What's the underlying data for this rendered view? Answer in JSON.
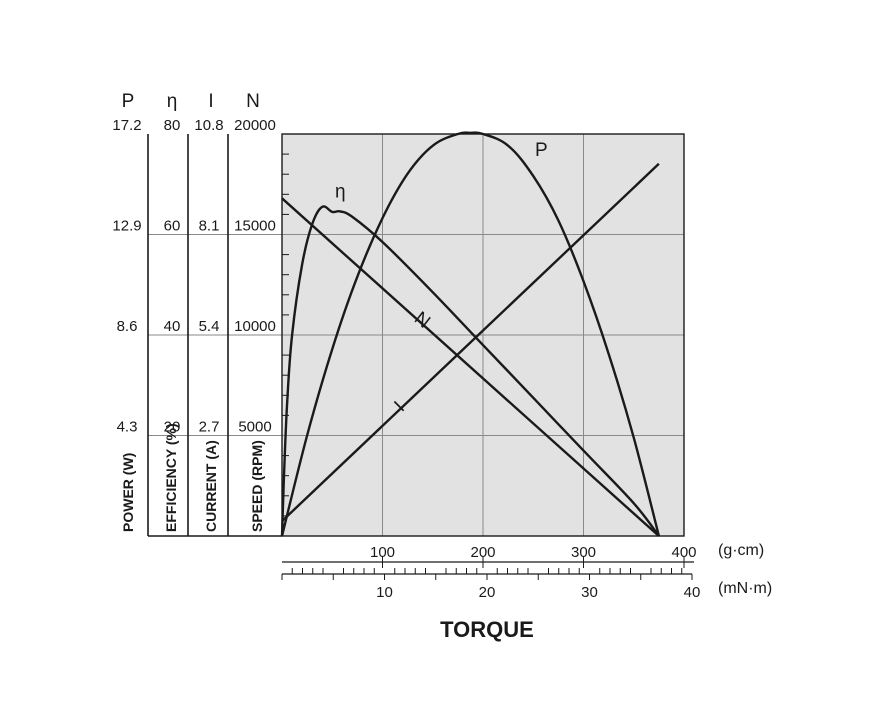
{
  "chart_data": {
    "type": "line",
    "x_axis": {
      "title": "TORQUE",
      "primary": {
        "unit": "(g·cm)",
        "ticks": [
          100,
          200,
          300,
          400
        ],
        "range": [
          0,
          400
        ]
      },
      "secondary": {
        "unit": "(mN·m)",
        "ticks": [
          10,
          20,
          30,
          40
        ],
        "range": [
          0,
          40
        ]
      }
    },
    "y_axes": [
      {
        "key": "P",
        "head": "P",
        "label": "POWER (W)",
        "ticks": [
          "4.3",
          "8.6",
          "12.9",
          "17.2"
        ],
        "range": [
          0,
          17.2
        ]
      },
      {
        "key": "eta",
        "head": "η",
        "label": "EFFICIENCY (%)",
        "ticks": [
          "20",
          "40",
          "60",
          "80"
        ],
        "range": [
          0,
          80
        ]
      },
      {
        "key": "I",
        "head": "I",
        "label": "CURRENT (A)",
        "ticks": [
          "2.7",
          "5.4",
          "8.1",
          "10.8"
        ],
        "range": [
          0,
          10.8
        ]
      },
      {
        "key": "N",
        "head": "N",
        "label": "SPEED (RPM)",
        "ticks": [
          "5000",
          "10000",
          "15000",
          "20000"
        ],
        "range": [
          0,
          20000
        ]
      }
    ],
    "grid": true,
    "series": [
      {
        "name": "N",
        "axis": "N",
        "x": [
          0,
          37.5
        ],
        "y": [
          16800,
          0
        ]
      },
      {
        "name": "I",
        "axis": "I",
        "x": [
          0,
          37.5
        ],
        "y": [
          0.4,
          10.0
        ]
      },
      {
        "name": "P",
        "axis": "P",
        "x": [
          0,
          2.5,
          5,
          7.5,
          10,
          12.5,
          15,
          17.5,
          18.75,
          20,
          22.5,
          25,
          27.5,
          30,
          32.5,
          35,
          37.5
        ],
        "y": [
          0,
          4.3,
          8.0,
          11.1,
          13.6,
          15.5,
          16.7,
          17.2,
          17.25,
          17.2,
          16.7,
          15.4,
          13.5,
          10.9,
          7.8,
          4.2,
          0
        ]
      },
      {
        "name": "η",
        "axis": "eta",
        "x": [
          0,
          0.2,
          0.5,
          1,
          2,
          3,
          4,
          5,
          5.8,
          7,
          10,
          15,
          20,
          25,
          30,
          35,
          37.5
        ],
        "y": [
          0,
          12,
          26,
          40,
          54,
          62,
          65.5,
          64.5,
          64.6,
          63.5,
          58.5,
          48.5,
          38,
          27.5,
          17,
          6.5,
          0
        ]
      }
    ]
  }
}
